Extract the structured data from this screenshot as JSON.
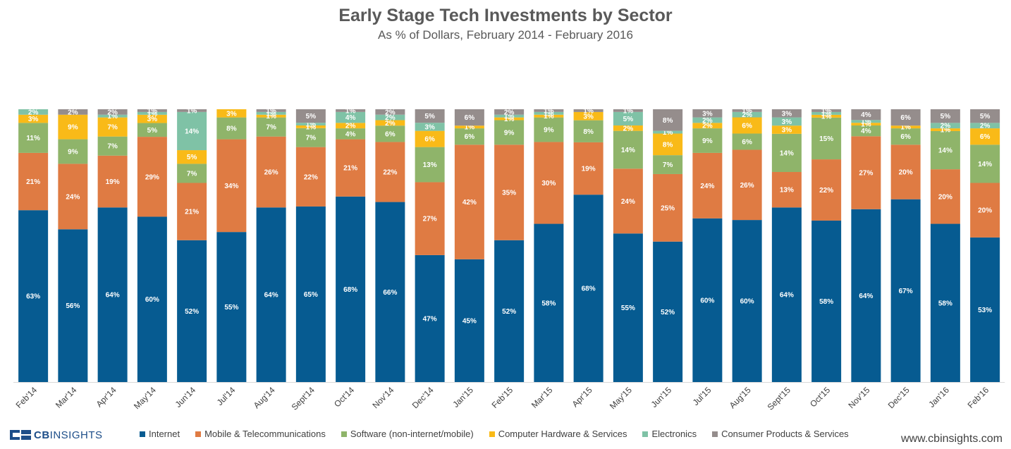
{
  "chart_data": {
    "type": "bar",
    "stacked": true,
    "title": "Early Stage Tech Investments by Sector",
    "subtitle": "As % of Dollars,  February 2014 - February 2016",
    "ylim": [
      0,
      100
    ],
    "categories": [
      "Feb'14",
      "Mar'14",
      "Apr'14",
      "May'14",
      "Jun'14",
      "Jul'14",
      "Aug'14",
      "Sept'14",
      "Oct'14",
      "Nov'14",
      "Dec'14",
      "Jan'15",
      "Feb'15",
      "Mar'15",
      "Apr'15",
      "May'15",
      "Jun'15",
      "Jul'15",
      "Aug'15",
      "Sept'15",
      "Oct'15",
      "Nov'15",
      "Dec'15",
      "Jan'16",
      "Feb'16"
    ],
    "series": [
      {
        "name": "Internet",
        "color": "#065b91",
        "values": [
          63,
          56,
          64,
          60,
          52,
          55,
          64,
          65,
          68,
          66,
          47,
          45,
          52,
          58,
          68,
          55,
          52,
          60,
          60,
          64,
          58,
          64,
          67,
          58,
          53
        ]
      },
      {
        "name": "Mobile & Telecommunications",
        "color": "#df7b43",
        "values": [
          21,
          24,
          19,
          29,
          21,
          34,
          26,
          22,
          21,
          22,
          27,
          42,
          35,
          30,
          19,
          24,
          25,
          24,
          26,
          13,
          22,
          27,
          20,
          20,
          20
        ]
      },
      {
        "name": "Software (non-internet/mobile)",
        "color": "#8fb46a",
        "values": [
          11,
          9,
          7,
          5,
          7,
          8,
          7,
          7,
          4,
          6,
          13,
          6,
          9,
          9,
          8,
          14,
          7,
          9,
          6,
          14,
          15,
          4,
          6,
          14,
          14
        ]
      },
      {
        "name": "Computer Hardware & Services",
        "color": "#f9ba18",
        "values": [
          3,
          9,
          7,
          3,
          5,
          3,
          1,
          1,
          2,
          2,
          6,
          1,
          1,
          1,
          3,
          2,
          8,
          2,
          6,
          3,
          1,
          1,
          1,
          1,
          6
        ]
      },
      {
        "name": "Electronics",
        "color": "#7fc2a6",
        "values": [
          2,
          0,
          1,
          1,
          14,
          0,
          1,
          1,
          4,
          2,
          3,
          0,
          1,
          1,
          0,
          5,
          1,
          2,
          2,
          3,
          1,
          1,
          0,
          2,
          2
        ]
      },
      {
        "name": "Consumer Products & Services",
        "color": "#958d8c",
        "values": [
          0,
          2,
          2,
          1,
          1,
          0,
          1,
          5,
          1,
          2,
          5,
          6,
          2,
          1,
          1,
          1,
          8,
          3,
          1,
          3,
          1,
          4,
          6,
          5,
          5
        ]
      }
    ]
  },
  "footer": {
    "logo_cb": "CB",
    "logo_insights": "INSIGHTS",
    "website": "www.cbinsights.com"
  }
}
